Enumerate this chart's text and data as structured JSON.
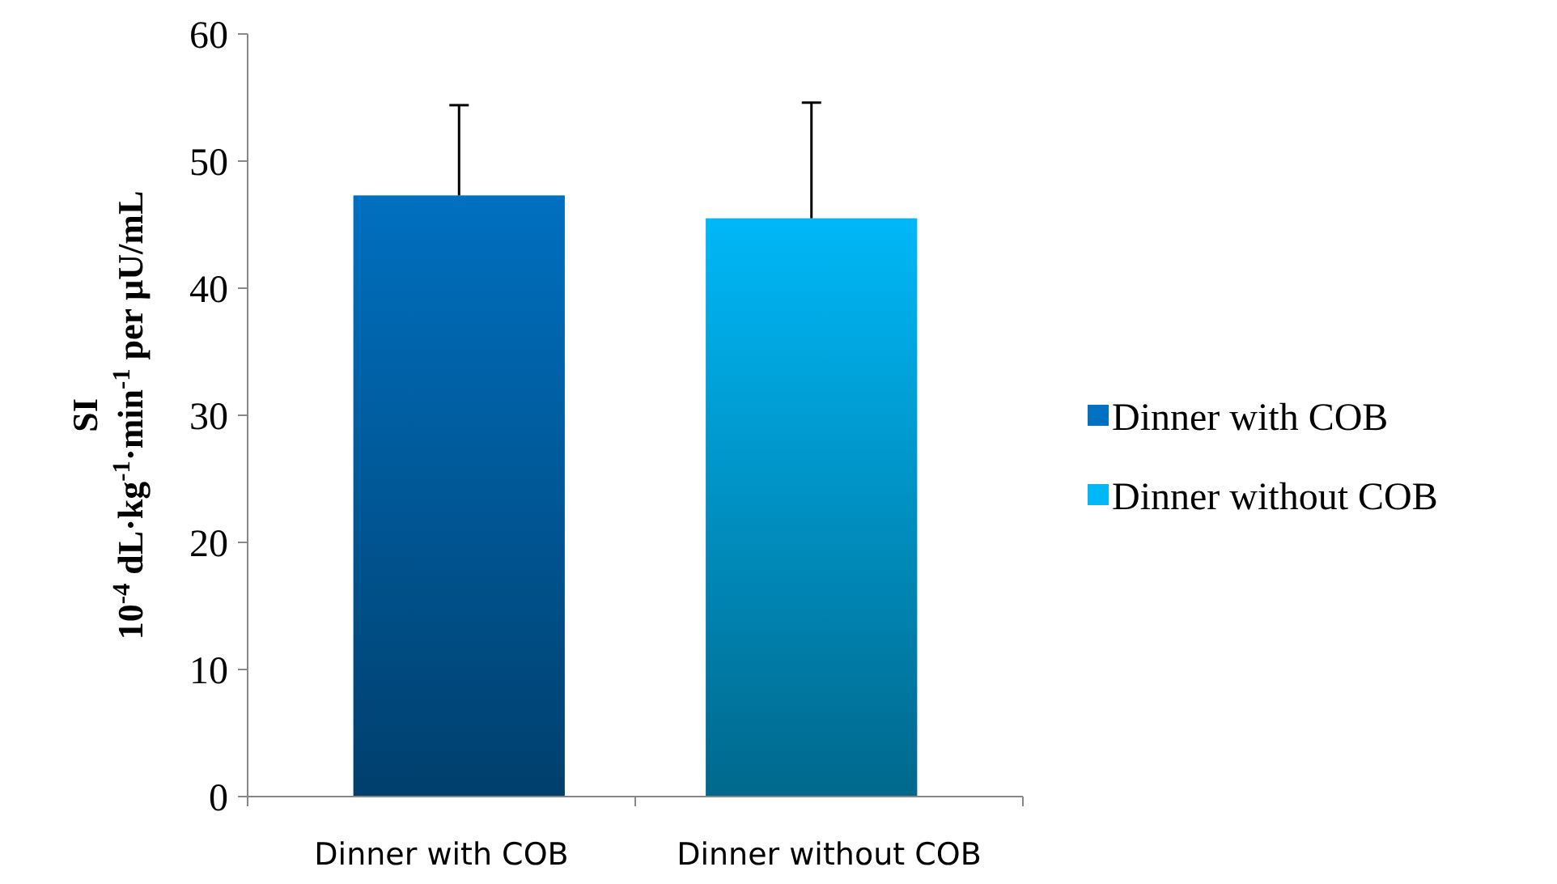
{
  "chart_data": {
    "type": "bar",
    "ylabel": "SI\n10$^{-4}$ dL·kg$^{-1}$·min$^{-1}$ per μU/mL",
    "categories": [
      "Dinner with COB",
      "Dinner without COB"
    ],
    "series": [
      {
        "name": "Dinner with COB",
        "color": "#0070c0",
        "values": [
          47.3,
          null
        ],
        "errors": [
          [
            47.3,
            54.4
          ],
          null
        ]
      },
      {
        "name": "Dinner without COB",
        "color": "#00b8f8",
        "values": [
          null,
          45.5
        ],
        "errors": [
          null,
          [
            45.5,
            54.6
          ]
        ]
      }
    ],
    "ylim": [
      0,
      60
    ],
    "yticks": [
      0,
      10,
      20,
      30,
      40,
      50,
      60
    ],
    "grid": false,
    "legend": "right"
  }
}
